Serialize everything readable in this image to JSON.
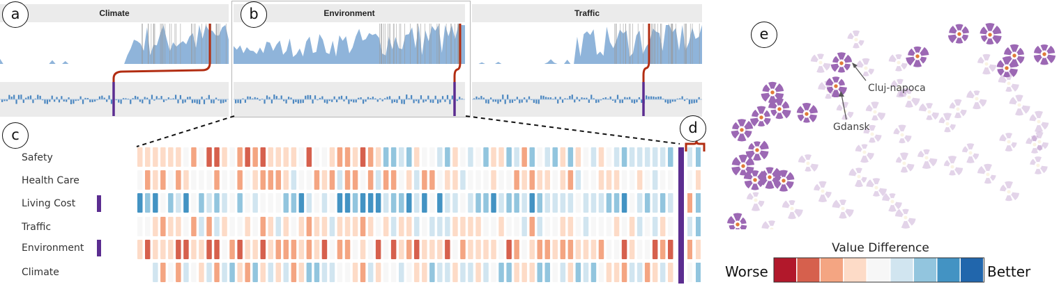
{
  "callouts": {
    "a": "a",
    "b": "b",
    "c": "c",
    "d": "d",
    "e": "e"
  },
  "panels": [
    {
      "title": "Climate"
    },
    {
      "title": "Environment"
    },
    {
      "title": "Traffic"
    }
  ],
  "rows": [
    {
      "label": "Safety",
      "marked": false
    },
    {
      "label": "Health Care",
      "marked": false
    },
    {
      "label": "Living Cost",
      "marked": true
    },
    {
      "label": "Traffic",
      "marked": false
    },
    {
      "label": "Environment",
      "marked": true
    },
    {
      "label": "Climate",
      "marked": false
    }
  ],
  "map_labels": {
    "city1": "Cluj-napoca",
    "city2": "Gdansk"
  },
  "legend": {
    "title": "Value Difference",
    "left": "Worse",
    "right": "Better",
    "colors": [
      "#b2182b",
      "#d6604d",
      "#f4a582",
      "#fddbc7",
      "#f7f7f7",
      "#d1e5f0",
      "#92c5de",
      "#4393c3",
      "#2166ac"
    ]
  },
  "colors": {
    "accent_purple": "#5b2d90",
    "link_red": "#b22d12",
    "area_blue": "#8fb4da",
    "bar_blue": "#4a86c0",
    "glyph_purple": "#9c68b4"
  }
}
